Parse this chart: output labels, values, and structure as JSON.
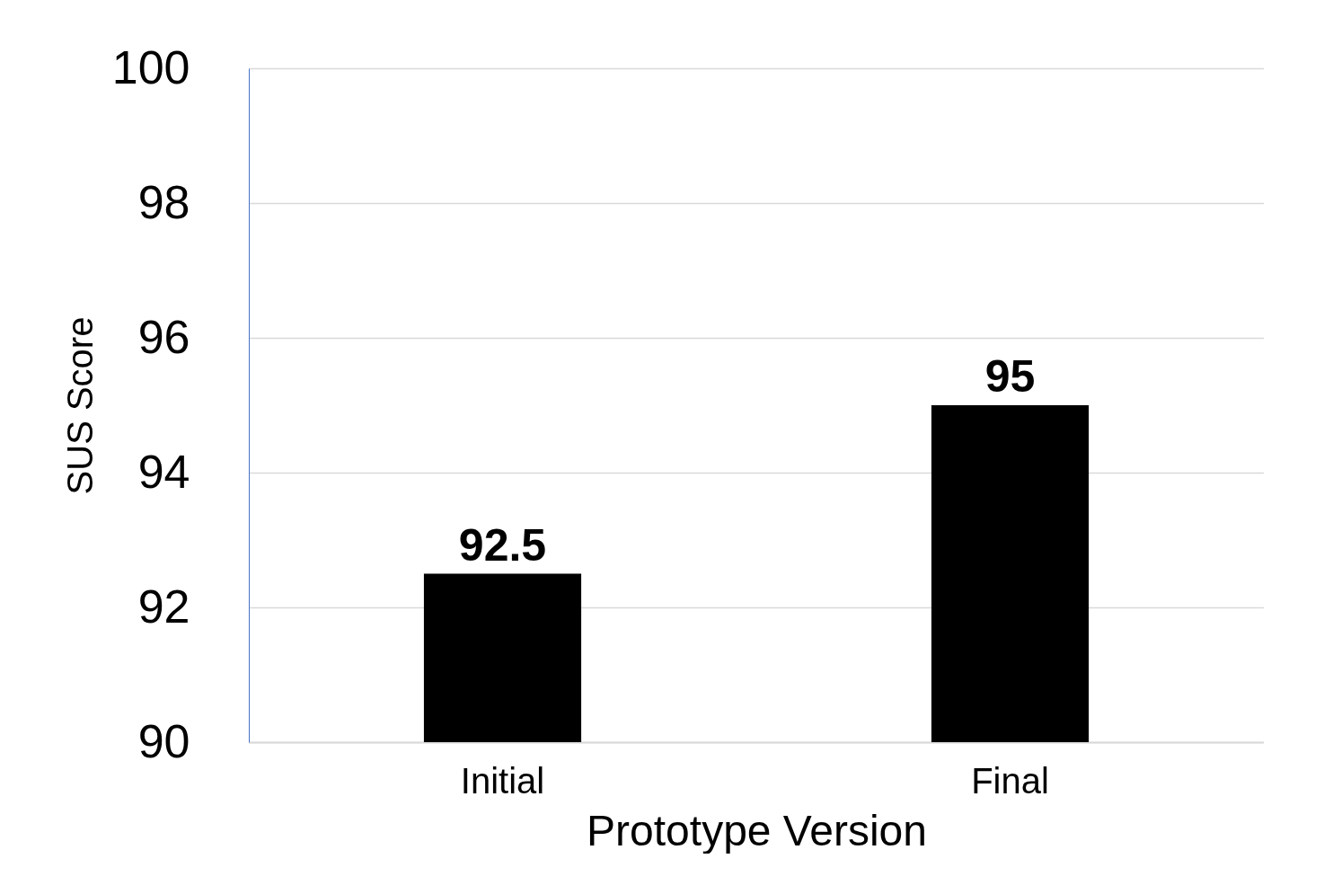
{
  "chart_data": {
    "type": "bar",
    "xlabel": "Prototype Version",
    "ylabel": "SUS Score",
    "categories": [
      "Initial",
      "Final"
    ],
    "values": [
      92.5,
      95
    ],
    "color": "#000000",
    "ylim": [
      90,
      100
    ],
    "yticks": [
      90,
      92,
      94,
      96,
      98,
      100
    ],
    "grid": "y",
    "data_labels": true
  }
}
